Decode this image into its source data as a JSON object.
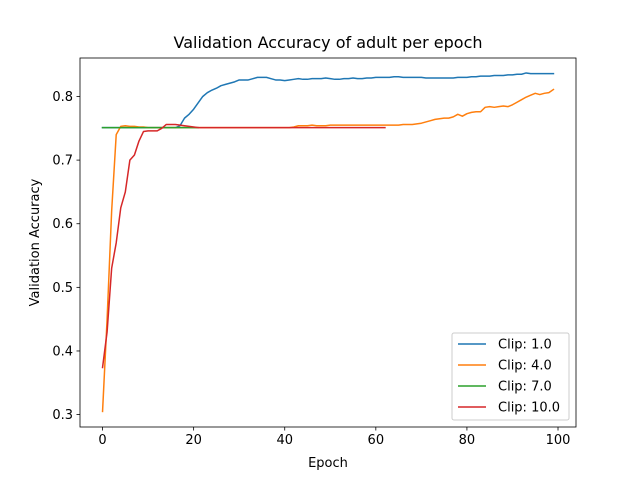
{
  "chart_data": {
    "type": "line",
    "title": "Validation Accuracy of adult per epoch",
    "xlabel": "Epoch",
    "ylabel": "Validation Accuracy",
    "xlim": [
      -4.95,
      103.95
    ],
    "ylim": [
      0.2805,
      0.8605
    ],
    "xticks": [
      0,
      20,
      40,
      60,
      80,
      100
    ],
    "yticks": [
      0.3,
      0.4,
      0.5,
      0.6,
      0.7,
      0.8
    ],
    "xtick_labels": [
      "0",
      "20",
      "40",
      "60",
      "80",
      "100"
    ],
    "ytick_labels": [
      "0.3",
      "0.4",
      "0.5",
      "0.6",
      "0.7",
      "0.8"
    ],
    "grid": false,
    "legend_position": "lower-right",
    "series": [
      {
        "name": "Clip: 1.0",
        "color": "#1f77b4",
        "x": [
          0,
          1,
          2,
          3,
          4,
          5,
          6,
          7,
          8,
          9,
          10,
          11,
          12,
          13,
          14,
          15,
          16,
          17,
          18,
          19,
          20,
          21,
          22,
          23,
          24,
          25,
          26,
          27,
          28,
          29,
          30,
          31,
          32,
          33,
          34,
          35,
          36,
          37,
          38,
          39,
          40,
          41,
          42,
          43,
          44,
          45,
          46,
          47,
          48,
          49,
          50,
          51,
          52,
          53,
          54,
          55,
          56,
          57,
          58,
          59,
          60,
          61,
          62,
          63,
          64,
          65,
          66,
          67,
          68,
          69,
          70,
          71,
          72,
          73,
          74,
          75,
          76,
          77,
          78,
          79,
          80,
          81,
          82,
          83,
          84,
          85,
          86,
          87,
          88,
          89,
          90,
          91,
          92,
          93,
          94,
          95,
          96,
          97,
          98,
          99
        ],
        "y": [
          0.751,
          0.751,
          0.751,
          0.751,
          0.751,
          0.751,
          0.751,
          0.751,
          0.751,
          0.751,
          0.751,
          0.751,
          0.751,
          0.751,
          0.751,
          0.751,
          0.751,
          0.754,
          0.766,
          0.772,
          0.78,
          0.79,
          0.8,
          0.806,
          0.81,
          0.813,
          0.817,
          0.819,
          0.821,
          0.823,
          0.826,
          0.826,
          0.826,
          0.828,
          0.83,
          0.83,
          0.83,
          0.828,
          0.826,
          0.826,
          0.825,
          0.826,
          0.827,
          0.828,
          0.827,
          0.827,
          0.828,
          0.828,
          0.828,
          0.829,
          0.828,
          0.827,
          0.827,
          0.828,
          0.828,
          0.829,
          0.828,
          0.828,
          0.829,
          0.829,
          0.83,
          0.83,
          0.83,
          0.83,
          0.831,
          0.831,
          0.83,
          0.83,
          0.83,
          0.83,
          0.83,
          0.829,
          0.829,
          0.829,
          0.829,
          0.829,
          0.829,
          0.829,
          0.83,
          0.83,
          0.83,
          0.831,
          0.831,
          0.832,
          0.832,
          0.832,
          0.833,
          0.833,
          0.833,
          0.834,
          0.834,
          0.835,
          0.835,
          0.837,
          0.836,
          0.836,
          0.836,
          0.836,
          0.836,
          0.836
        ]
      },
      {
        "name": "Clip: 4.0",
        "color": "#ff7f0e",
        "x": [
          0,
          1,
          2,
          3,
          4,
          5,
          6,
          7,
          8,
          9,
          10,
          11,
          12,
          13,
          14,
          15,
          16,
          17,
          18,
          19,
          20,
          21,
          22,
          23,
          24,
          25,
          26,
          27,
          28,
          29,
          30,
          31,
          32,
          33,
          34,
          35,
          36,
          37,
          38,
          39,
          40,
          41,
          42,
          43,
          44,
          45,
          46,
          47,
          48,
          49,
          50,
          51,
          52,
          53,
          54,
          55,
          56,
          57,
          58,
          59,
          60,
          61,
          62,
          63,
          64,
          65,
          66,
          67,
          68,
          69,
          70,
          71,
          72,
          73,
          74,
          75,
          76,
          77,
          78,
          79,
          80,
          81,
          82,
          83,
          84,
          85,
          86,
          87,
          88,
          89,
          90,
          91,
          92,
          93,
          94,
          95,
          96,
          97,
          98,
          99
        ],
        "y": [
          0.305,
          0.45,
          0.62,
          0.74,
          0.753,
          0.754,
          0.753,
          0.753,
          0.752,
          0.752,
          0.751,
          0.751,
          0.751,
          0.751,
          0.751,
          0.751,
          0.751,
          0.751,
          0.751,
          0.751,
          0.751,
          0.751,
          0.751,
          0.751,
          0.751,
          0.751,
          0.751,
          0.751,
          0.751,
          0.751,
          0.751,
          0.751,
          0.751,
          0.751,
          0.751,
          0.751,
          0.751,
          0.751,
          0.751,
          0.751,
          0.751,
          0.751,
          0.752,
          0.754,
          0.754,
          0.754,
          0.755,
          0.754,
          0.754,
          0.754,
          0.755,
          0.755,
          0.755,
          0.755,
          0.755,
          0.755,
          0.755,
          0.755,
          0.755,
          0.755,
          0.755,
          0.755,
          0.755,
          0.755,
          0.755,
          0.755,
          0.756,
          0.756,
          0.756,
          0.757,
          0.758,
          0.76,
          0.762,
          0.764,
          0.765,
          0.766,
          0.766,
          0.768,
          0.772,
          0.769,
          0.773,
          0.775,
          0.776,
          0.776,
          0.783,
          0.784,
          0.783,
          0.784,
          0.785,
          0.784,
          0.787,
          0.791,
          0.795,
          0.799,
          0.802,
          0.805,
          0.803,
          0.805,
          0.806,
          0.811
        ]
      },
      {
        "name": "Clip: 7.0",
        "color": "#2ca02c",
        "x": [
          0,
          1,
          2,
          3,
          4,
          5,
          6,
          7,
          8,
          9,
          10,
          11,
          12,
          13,
          14,
          15,
          16,
          17,
          18,
          19,
          20,
          21
        ],
        "y": [
          0.751,
          0.751,
          0.751,
          0.751,
          0.751,
          0.751,
          0.751,
          0.751,
          0.751,
          0.751,
          0.751,
          0.751,
          0.751,
          0.751,
          0.751,
          0.751,
          0.751,
          0.751,
          0.751,
          0.751,
          0.751,
          0.751
        ]
      },
      {
        "name": "Clip: 10.0",
        "color": "#d62728",
        "x": [
          0,
          1,
          2,
          3,
          4,
          5,
          6,
          7,
          8,
          9,
          10,
          11,
          12,
          13,
          14,
          15,
          16,
          17,
          18,
          19,
          20,
          21,
          22,
          23,
          24,
          25,
          26,
          27,
          28,
          29,
          30,
          31,
          32,
          33,
          34,
          35,
          36,
          37,
          38,
          39,
          40,
          41,
          42,
          43,
          44,
          45,
          46,
          47,
          48,
          49,
          50,
          51,
          52,
          53,
          54,
          55,
          56,
          57,
          58,
          59,
          60,
          61,
          62
        ],
        "y": [
          0.374,
          0.43,
          0.53,
          0.57,
          0.625,
          0.65,
          0.7,
          0.708,
          0.73,
          0.745,
          0.746,
          0.746,
          0.746,
          0.75,
          0.756,
          0.756,
          0.756,
          0.755,
          0.754,
          0.753,
          0.752,
          0.751,
          0.751,
          0.751,
          0.751,
          0.751,
          0.751,
          0.751,
          0.751,
          0.751,
          0.751,
          0.751,
          0.751,
          0.751,
          0.751,
          0.751,
          0.751,
          0.751,
          0.751,
          0.751,
          0.751,
          0.751,
          0.751,
          0.751,
          0.751,
          0.751,
          0.751,
          0.751,
          0.751,
          0.751,
          0.751,
          0.751,
          0.751,
          0.751,
          0.751,
          0.751,
          0.751,
          0.751,
          0.751,
          0.751,
          0.751,
          0.751,
          0.751
        ]
      }
    ]
  }
}
